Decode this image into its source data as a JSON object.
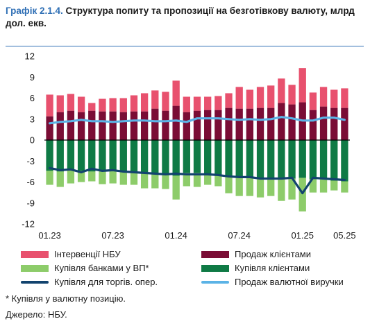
{
  "header": {
    "title_number": "Графік 2.1.4.",
    "title_text": "Структура попиту та пропозиції на безготівкову валюту, млрд дол. екв."
  },
  "footnote": "* Купівля у валютну позицію.",
  "source": "Джерело: НБУ.",
  "colors": {
    "interventions": "#e8516e",
    "sales_clients": "#7a0d35",
    "purchases_banks": "#8dcc6a",
    "purchases_clients": "#0f7a45",
    "trade_purchases": "#12436e",
    "export_sales": "#5bb3e6",
    "zero_line": "#000000"
  },
  "chart_data": {
    "type": "bar",
    "ylim": [
      -12,
      12
    ],
    "yticks": [
      12,
      9,
      6,
      3,
      0,
      -3,
      -6,
      -9,
      -12
    ],
    "xticks": [
      {
        "index": 0,
        "label": "01.23"
      },
      {
        "index": 6,
        "label": "07.23"
      },
      {
        "index": 12,
        "label": "01.24"
      },
      {
        "index": 18,
        "label": "07.24"
      },
      {
        "index": 24,
        "label": "01.25"
      },
      {
        "index": 28,
        "label": "05.25"
      }
    ],
    "categories": [
      "01.23",
      "02.23",
      "03.23",
      "04.23",
      "05.23",
      "06.23",
      "07.23",
      "08.23",
      "09.23",
      "10.23",
      "11.23",
      "12.23",
      "01.24",
      "02.24",
      "03.24",
      "04.24",
      "05.24",
      "06.24",
      "07.24",
      "08.24",
      "09.24",
      "10.24",
      "11.24",
      "12.24",
      "01.25",
      "02.25",
      "03.25",
      "04.25",
      "05.25"
    ],
    "series": [
      {
        "name": "Інтервенції НБУ",
        "kind": "bar",
        "stack": "pos",
        "color_key": "interventions",
        "values": [
          3.1,
          2.4,
          2.4,
          2.2,
          1.1,
          1.8,
          1.9,
          2.0,
          2.3,
          2.6,
          2.6,
          2.7,
          3.6,
          2.2,
          2.0,
          1.9,
          2.0,
          2.1,
          3.1,
          2.7,
          3.0,
          3.2,
          3.5,
          2.8,
          4.9,
          2.5,
          2.8,
          2.6,
          2.8
        ]
      },
      {
        "name": "Продаж клієнтами",
        "kind": "bar",
        "stack": "pos",
        "color_key": "sales_clients",
        "values": [
          3.4,
          4.0,
          4.2,
          4.0,
          4.2,
          4.1,
          4.1,
          4.0,
          4.1,
          4.1,
          4.5,
          4.2,
          4.9,
          4.0,
          4.2,
          4.3,
          4.3,
          4.6,
          4.5,
          4.5,
          4.6,
          4.6,
          5.3,
          5.1,
          5.4,
          4.3,
          4.8,
          4.6,
          4.6
        ]
      },
      {
        "name": "Купівля банками у ВП*",
        "kind": "bar",
        "stack": "neg",
        "color_key": "purchases_banks",
        "values": [
          -2.0,
          -2.2,
          -1.9,
          -1.6,
          -1.4,
          -1.9,
          -1.8,
          -1.8,
          -1.8,
          -2.3,
          -2.2,
          -2.2,
          -3.4,
          -1.9,
          -2.0,
          -1.4,
          -1.6,
          -2.4,
          -2.7,
          -2.7,
          -2.7,
          -2.5,
          -3.2,
          -3.0,
          -4.8,
          -1.9,
          -2.0,
          -1.4,
          -1.6
        ]
      },
      {
        "name": "Купівля клієнтами",
        "kind": "bar",
        "stack": "neg",
        "color_key": "purchases_clients",
        "values": [
          -4.4,
          -4.5,
          -4.3,
          -4.4,
          -4.5,
          -4.4,
          -4.4,
          -4.6,
          -4.6,
          -4.6,
          -4.7,
          -4.8,
          -5.1,
          -4.7,
          -4.7,
          -5.0,
          -5.0,
          -5.2,
          -5.3,
          -5.3,
          -5.5,
          -5.5,
          -5.5,
          -5.5,
          -5.4,
          -5.6,
          -5.5,
          -5.8,
          -5.9
        ]
      },
      {
        "name": "Купівля для торгів. опер.",
        "kind": "line",
        "color_key": "trade_purchases",
        "values": [
          -4.0,
          -4.3,
          -4.2,
          -4.6,
          -4.1,
          -4.4,
          -4.3,
          -4.5,
          -4.6,
          -4.7,
          -4.8,
          -4.9,
          -4.8,
          -4.9,
          -4.9,
          -4.9,
          -5.0,
          -5.2,
          -5.3,
          -5.3,
          -5.5,
          -5.5,
          -5.5,
          -5.4,
          -7.6,
          -5.4,
          -5.5,
          -5.6,
          -5.7
        ]
      },
      {
        "name": "Продаж валютної виручки",
        "kind": "line",
        "color_key": "export_sales",
        "values": [
          2.4,
          2.6,
          2.7,
          2.9,
          2.7,
          2.7,
          2.6,
          2.7,
          2.8,
          2.8,
          2.7,
          2.7,
          2.8,
          2.6,
          3.1,
          3.1,
          3.1,
          3.0,
          2.9,
          3.0,
          2.9,
          3.0,
          3.3,
          3.1,
          2.8,
          2.8,
          3.2,
          3.2,
          2.9
        ]
      }
    ]
  }
}
